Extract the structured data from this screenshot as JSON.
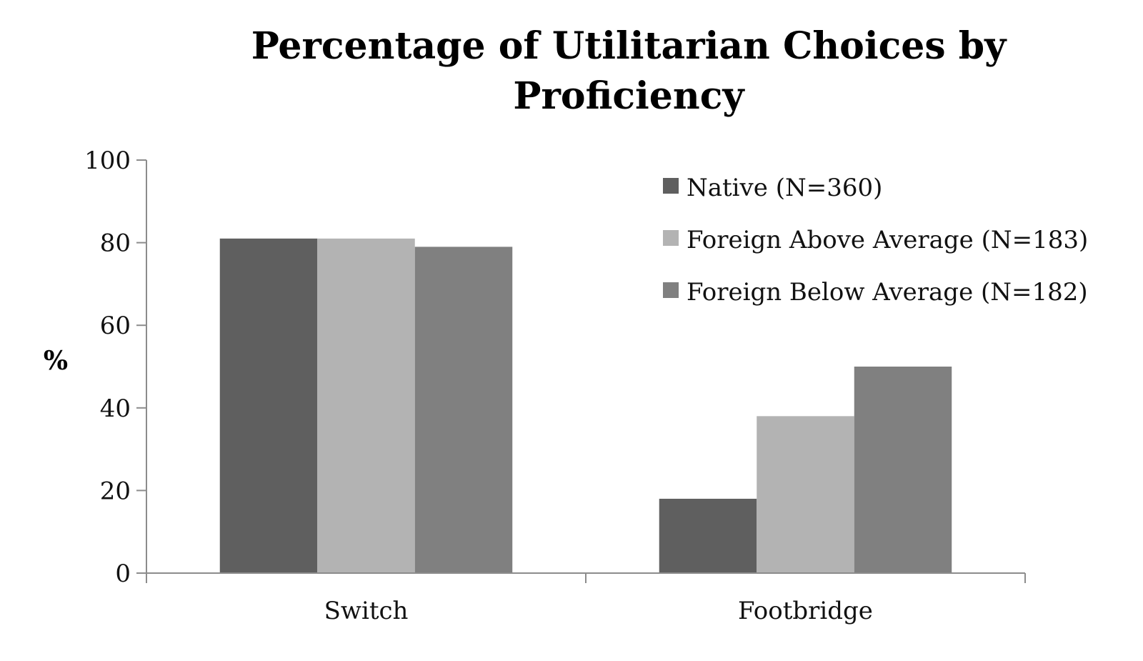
{
  "chart_data": {
    "type": "bar",
    "title": "Percentage of Utilitarian Choices by Proficiency",
    "title_lines": [
      "Percentage of Utilitarian Choices by",
      "Proficiency"
    ],
    "xlabel": "",
    "ylabel": "%",
    "ylim": [
      0,
      100
    ],
    "yticks": [
      0,
      20,
      40,
      60,
      80,
      100
    ],
    "categories": [
      "Switch",
      "Footbridge"
    ],
    "series": [
      {
        "name": "Native (N=360)",
        "values": [
          81,
          18
        ],
        "color": "#5f5f5f"
      },
      {
        "name": "Foreign Above Average (N=183)",
        "values": [
          81,
          38
        ],
        "color": "#b3b3b3"
      },
      {
        "name": "Foreign Below Average (N=182)",
        "values": [
          79,
          50
        ],
        "color": "#808080"
      }
    ],
    "grid": false,
    "legend_position": "top-right"
  }
}
